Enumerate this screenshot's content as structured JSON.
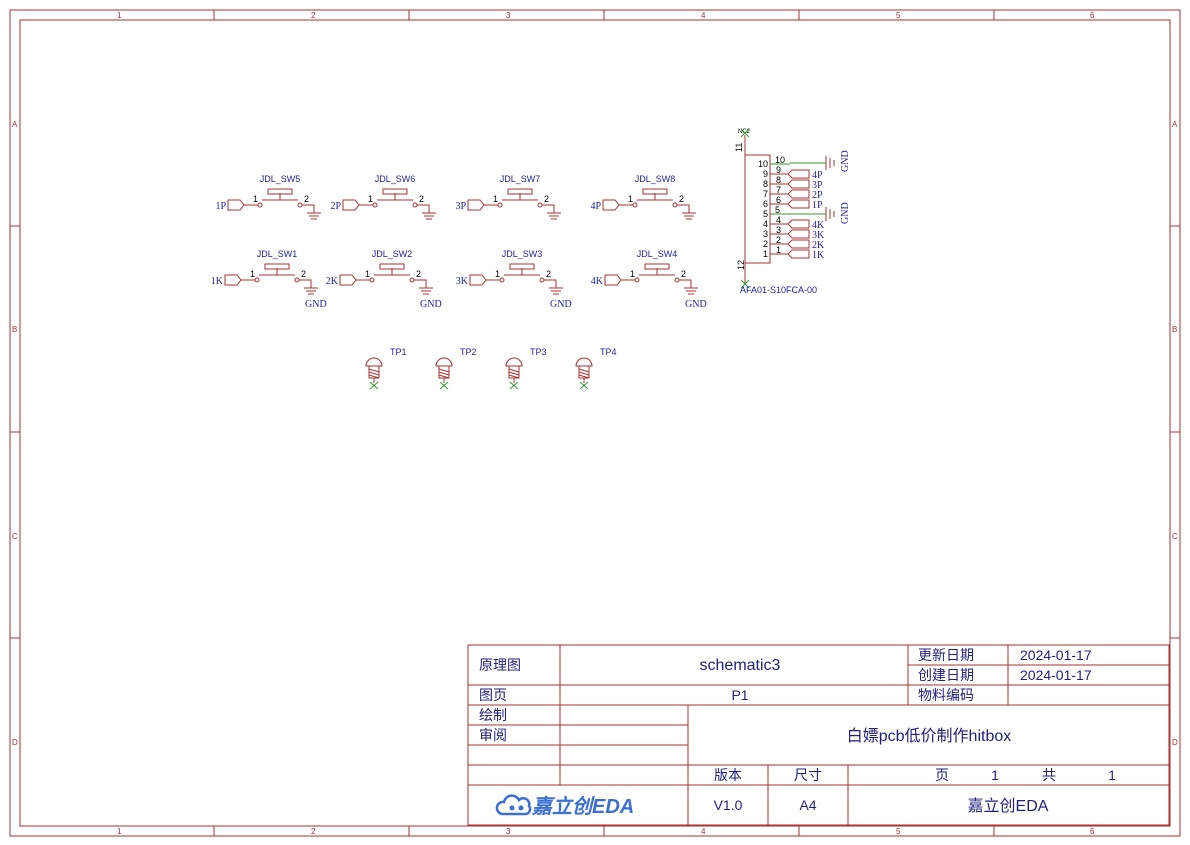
{
  "rulers": {
    "columns": [
      "1",
      "2",
      "3",
      "4",
      "5",
      "6"
    ],
    "rows": [
      "A",
      "B",
      "C",
      "D"
    ]
  },
  "switches": [
    {
      "ref": "JDL_SW5",
      "net": "1P",
      "gnd_label": ""
    },
    {
      "ref": "JDL_SW6",
      "net": "2P",
      "gnd_label": ""
    },
    {
      "ref": "JDL_SW7",
      "net": "3P",
      "gnd_label": ""
    },
    {
      "ref": "JDL_SW8",
      "net": "4P",
      "gnd_label": ""
    },
    {
      "ref": "JDL_SW1",
      "net": "1K",
      "gnd_label": "GND"
    },
    {
      "ref": "JDL_SW2",
      "net": "2K",
      "gnd_label": "GND"
    },
    {
      "ref": "JDL_SW3",
      "net": "3K",
      "gnd_label": "GND"
    },
    {
      "ref": "JDL_SW4",
      "net": "4K",
      "gnd_label": "GND"
    }
  ],
  "switch_pins": {
    "left": "1",
    "right": "2"
  },
  "test_points": [
    "TP1",
    "TP2",
    "TP3",
    "TP4"
  ],
  "connector": {
    "part": "AFA01-S10FCA-00",
    "nc_label": "NC2",
    "top_pin": "11",
    "bottom_pin": "12",
    "gnd_label": "GND",
    "pins": [
      {
        "num": "10",
        "net": "10"
      },
      {
        "num": "9",
        "net": "4P"
      },
      {
        "num": "8",
        "net": "3P"
      },
      {
        "num": "7",
        "net": "2P"
      },
      {
        "num": "6",
        "net": "1P"
      },
      {
        "num": "5",
        "net": "5"
      },
      {
        "num": "4",
        "net": "4K"
      },
      {
        "num": "3",
        "net": "3K"
      },
      {
        "num": "2",
        "net": "2K"
      },
      {
        "num": "1",
        "net": "1K"
      }
    ]
  },
  "title_block": {
    "schematic_label": "原理图",
    "schematic_name": "schematic3",
    "update_date_label": "更新日期",
    "update_date": "2024-01-17",
    "create_date_label": "创建日期",
    "create_date": "2024-01-17",
    "page_label": "图页",
    "page_value": "P1",
    "material_label": "物料编码",
    "material_value": "",
    "drawn_label": "绘制",
    "review_label": "审阅",
    "project_title": "白嫖pcb低价制作hitbox",
    "version_label": "版本",
    "size_label": "尺寸",
    "sheet_label": "页",
    "sheet_num": "1",
    "total_label": "共",
    "total_num": "1",
    "version_value": "V1.0",
    "size_value": "A4",
    "company": "嘉立创EDA",
    "logo_text": "嘉立创EDA"
  },
  "colors": {
    "frame": "#a83232",
    "net": "#1f1f9e",
    "gnd_wire": "#2e9e2e",
    "logo": "#3b6fd1"
  }
}
